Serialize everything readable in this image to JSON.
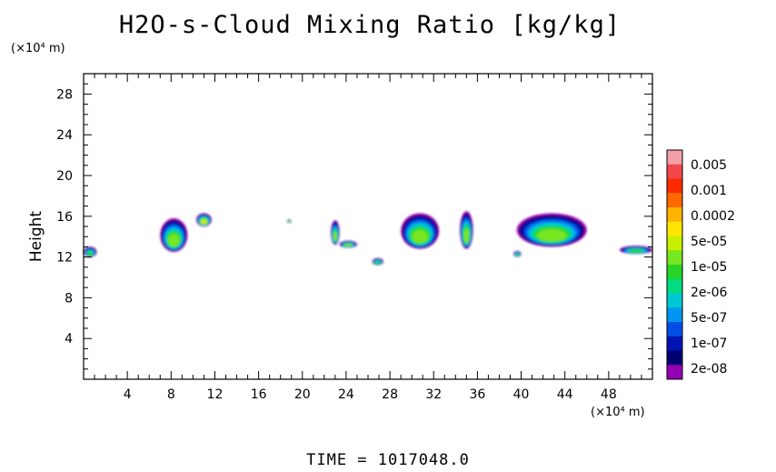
{
  "chart_data": {
    "type": "heatmap",
    "title": "H2O-s-Cloud Mixing Ratio [kg/kg]",
    "ylabel": "Height",
    "x_multiplier": "(×10⁴ m)",
    "y_multiplier": "(×10⁴ m)",
    "xlim": [
      0,
      52
    ],
    "ylim": [
      0,
      30
    ],
    "x_ticks": [
      "4",
      "8",
      "12",
      "16",
      "20",
      "24",
      "28",
      "32",
      "36",
      "40",
      "44",
      "48"
    ],
    "x_tick_values": [
      4,
      8,
      12,
      16,
      20,
      24,
      28,
      32,
      36,
      40,
      44,
      48
    ],
    "y_ticks": [
      "4",
      "8",
      "12",
      "16",
      "20",
      "24",
      "28"
    ],
    "y_tick_values": [
      4,
      8,
      12,
      16,
      20,
      24,
      28
    ],
    "colorbar": {
      "colors": [
        "#f4a0a8",
        "#f04848",
        "#ff2a00",
        "#ff6a00",
        "#ffb300",
        "#ffe600",
        "#c8f000",
        "#78e620",
        "#28d428",
        "#00dc82",
        "#00c8d2",
        "#0096f0",
        "#0050e6",
        "#0014b4",
        "#000070",
        "#9600b4"
      ],
      "labels": [
        "0.005",
        "0.001",
        "0.0002",
        "5e-05",
        "1e-05",
        "2e-06",
        "5e-07",
        "1e-07",
        "2e-08"
      ]
    },
    "clouds": [
      {
        "x": [
          0.0,
          1.2
        ],
        "y": [
          12.0,
          13.0
        ],
        "peak": 0.55
      },
      {
        "x": [
          7.0,
          9.5
        ],
        "y": [
          12.5,
          15.8
        ],
        "peak": 0.5
      },
      {
        "x": [
          10.3,
          11.7
        ],
        "y": [
          15.0,
          16.3
        ],
        "peak": 0.1
      },
      {
        "x": [
          18.6,
          19.0
        ],
        "y": [
          15.3,
          15.7
        ],
        "peak": 0.1
      },
      {
        "x": [
          22.6,
          23.4
        ],
        "y": [
          13.2,
          15.6
        ],
        "peak": 0.3
      },
      {
        "x": [
          23.4,
          25.0
        ],
        "y": [
          12.9,
          13.6
        ],
        "peak": 0.45
      },
      {
        "x": [
          26.4,
          27.4
        ],
        "y": [
          11.2,
          11.9
        ],
        "peak": 0.55
      },
      {
        "x": [
          29.0,
          32.5
        ],
        "y": [
          12.8,
          16.3
        ],
        "peak": 0.45
      },
      {
        "x": [
          34.4,
          35.6
        ],
        "y": [
          12.8,
          16.5
        ],
        "peak": 0.4
      },
      {
        "x": [
          39.3,
          40.0
        ],
        "y": [
          12.0,
          12.6
        ],
        "peak": 0.55
      },
      {
        "x": [
          39.6,
          46.0
        ],
        "y": [
          13.0,
          16.3
        ],
        "peak": 0.5
      },
      {
        "x": [
          49.0,
          52.0
        ],
        "y": [
          12.3,
          13.1
        ],
        "peak": 0.55
      }
    ]
  },
  "footer": {
    "time_label": "TIME = 1017048.0"
  }
}
